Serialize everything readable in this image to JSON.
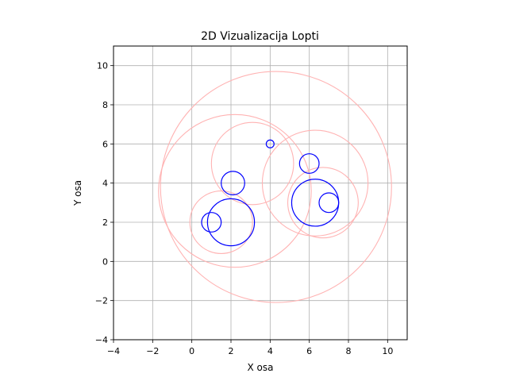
{
  "chart_data": {
    "type": "scatter",
    "title": "2D Vizualizacija Lopti",
    "xlabel": "X osa",
    "ylabel": "Y osa",
    "xlim": [
      -4,
      11
    ],
    "ylim": [
      -4,
      11
    ],
    "xticks": [
      -4,
      -2,
      0,
      2,
      4,
      6,
      8,
      10
    ],
    "yticks": [
      -4,
      -2,
      0,
      2,
      4,
      6,
      8,
      10
    ],
    "xtick_labels": [
      "−4",
      "−2",
      "0",
      "2",
      "4",
      "6",
      "8",
      "10"
    ],
    "ytick_labels": [
      "−4",
      "−2",
      "0",
      "2",
      "4",
      "6",
      "8",
      "10"
    ],
    "grid": true,
    "colors": {
      "balls": "#0000ff",
      "bounds": "#ffb3b3"
    },
    "series": [
      {
        "marks": "balls",
        "circles": [
          {
            "cx": 1.0,
            "cy": 2.0,
            "r": 0.5
          },
          {
            "cx": 2.0,
            "cy": 2.0,
            "r": 1.2
          },
          {
            "cx": 2.1,
            "cy": 4.0,
            "r": 0.6
          },
          {
            "cx": 4.0,
            "cy": 6.0,
            "r": 0.2
          },
          {
            "cx": 6.0,
            "cy": 5.0,
            "r": 0.5
          },
          {
            "cx": 6.3,
            "cy": 3.0,
            "r": 1.2
          },
          {
            "cx": 7.0,
            "cy": 3.0,
            "r": 0.5
          }
        ]
      },
      {
        "marks": "bounds",
        "circles": [
          {
            "cx": 1.5,
            "cy": 2.0,
            "r": 1.6
          },
          {
            "cx": 3.1,
            "cy": 5.0,
            "r": 2.1
          },
          {
            "cx": 6.7,
            "cy": 3.0,
            "r": 1.8
          },
          {
            "cx": 6.3,
            "cy": 4.0,
            "r": 2.7
          },
          {
            "cx": 2.2,
            "cy": 3.6,
            "r": 3.9
          },
          {
            "cx": 4.3,
            "cy": 3.8,
            "r": 5.9
          }
        ]
      }
    ]
  }
}
